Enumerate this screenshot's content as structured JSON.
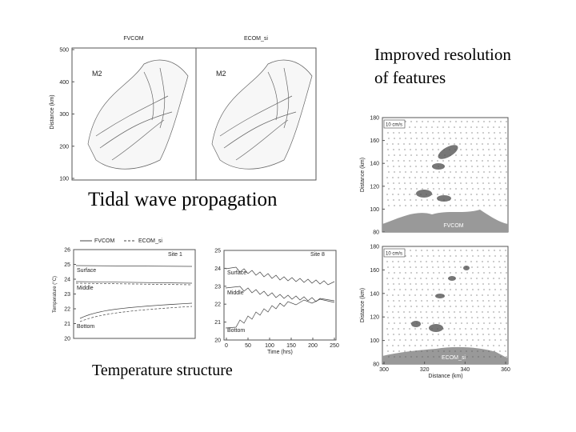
{
  "captions": {
    "resolution_line1": "Improved resolution",
    "resolution_line2": "of features",
    "tidal": "Tidal wave propagation",
    "temperature": "Temperature structure"
  },
  "tidal_maps": {
    "panels": [
      {
        "title": "FVCOM",
        "label": "M2"
      },
      {
        "title": "ECOM_si",
        "label": "M2"
      }
    ],
    "ylabel": "Distance (km)",
    "ylim": [
      100,
      500
    ],
    "yticks": [
      100,
      200,
      300,
      400,
      500
    ]
  },
  "temp_site1": {
    "legend": [
      "FVCOM",
      "ECOM_si"
    ],
    "site": "Site 1",
    "layers": [
      "Surface",
      "Middle",
      "Bottom"
    ],
    "ylabel": "Temperature (°C)",
    "ylim": [
      20,
      26
    ],
    "yticks": [
      20,
      21,
      22,
      23,
      24,
      25,
      26
    ]
  },
  "temp_site8": {
    "site": "Site 8",
    "layers": [
      "Surface",
      "Middle",
      "Bottom"
    ],
    "xlabel": "Time (hrs)",
    "xlim": [
      0,
      250
    ],
    "xticks": [
      0,
      50,
      100,
      150,
      200,
      250
    ],
    "ylim": [
      20,
      25
    ],
    "yticks": [
      20,
      21,
      22,
      23,
      24,
      25
    ]
  },
  "current_maps": {
    "panels": [
      {
        "title": "FVCOM",
        "scale": "10 cm/s"
      },
      {
        "title": "ECOM_si",
        "scale": "10 cm/s"
      }
    ],
    "ylabel": "Distance (km)",
    "xlabel": "Distance (km)",
    "ylim": [
      80,
      180
    ],
    "yticks": [
      80,
      100,
      120,
      140,
      160,
      180
    ],
    "xlim": [
      300,
      360
    ],
    "xticks": [
      300,
      320,
      340,
      360
    ]
  }
}
